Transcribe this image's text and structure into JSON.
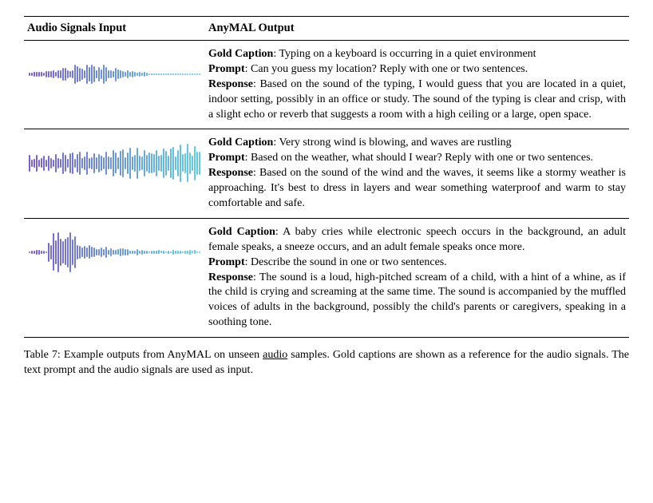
{
  "headers": {
    "col1": "Audio Signals Input",
    "col2": "AnyMAL Output"
  },
  "rows": [
    {
      "gold_label": "Gold Caption",
      "gold": "Typing on a keyboard is occurring in a quiet environment",
      "prompt_label": "Prompt",
      "prompt": "Can you guess my location?  Reply with one or two sentences.",
      "response_label": "Response",
      "response": "Based on the sound of the typing, I would guess that you are located in a quiet, indoor setting, possibly in an office or study. The sound of the typing is clear and crisp, with a slight echo or reverb that suggests a room with a high ceiling or a large, open space.",
      "waveform": {
        "color_start": "#7a5cd6",
        "color_end": "#5cd0e8",
        "profile": "typing",
        "bars": 72,
        "max_height": 30
      }
    },
    {
      "gold_label": "Gold Caption",
      "gold": "Very strong wind is blowing, and waves are rustling",
      "prompt_label": "Prompt",
      "prompt": "Based on the weather, what should I wear? Reply with one or two sentences.",
      "response_label": "Response",
      "response": "Based on the sound of the wind and the waves, it seems like a stormy weather is approaching. It's best to dress in layers and wear something waterproof and warm to stay comfortable and safe.",
      "waveform": {
        "color_start": "#7a5cd6",
        "color_end": "#5cd0e8",
        "profile": "wind",
        "bars": 72,
        "max_height": 52
      }
    },
    {
      "gold_label": "Gold Caption",
      "gold": "A baby cries while electronic speech occurs in the background, an adult female speaks, a sneeze occurs, and an adult female speaks once more.",
      "prompt_label": "Prompt",
      "prompt": "Describe the sound in one or two sentences.",
      "response_label": "Response",
      "response": "The sound is a loud, high-pitched scream of a child, with a hint of a whine, as if the child is crying and screaming at the same time. The sound is accompanied by the muffled voices of adults in the background, possibly the child's parents or caregivers, speaking in a soothing tone.",
      "waveform": {
        "color_start": "#7a5cd6",
        "color_end": "#5cd0e8",
        "profile": "cry",
        "bars": 72,
        "max_height": 56
      }
    }
  ],
  "caption": {
    "label": "Table 7:",
    "text_before": " Example outputs from AnyMAL on unseen ",
    "underlined": "audio",
    "text_after": " samples. Gold captions are shown as a reference for the audio signals. The text prompt and the audio signals are used as input."
  },
  "styling": {
    "body_font_size": 14,
    "body_text_color": "#000000",
    "body_background": "#ffffff",
    "border_color": "#000000",
    "outer_border_width": 1.5,
    "inner_border_width": 1,
    "col1_width": 210,
    "waveform_bar_width": 2
  }
}
